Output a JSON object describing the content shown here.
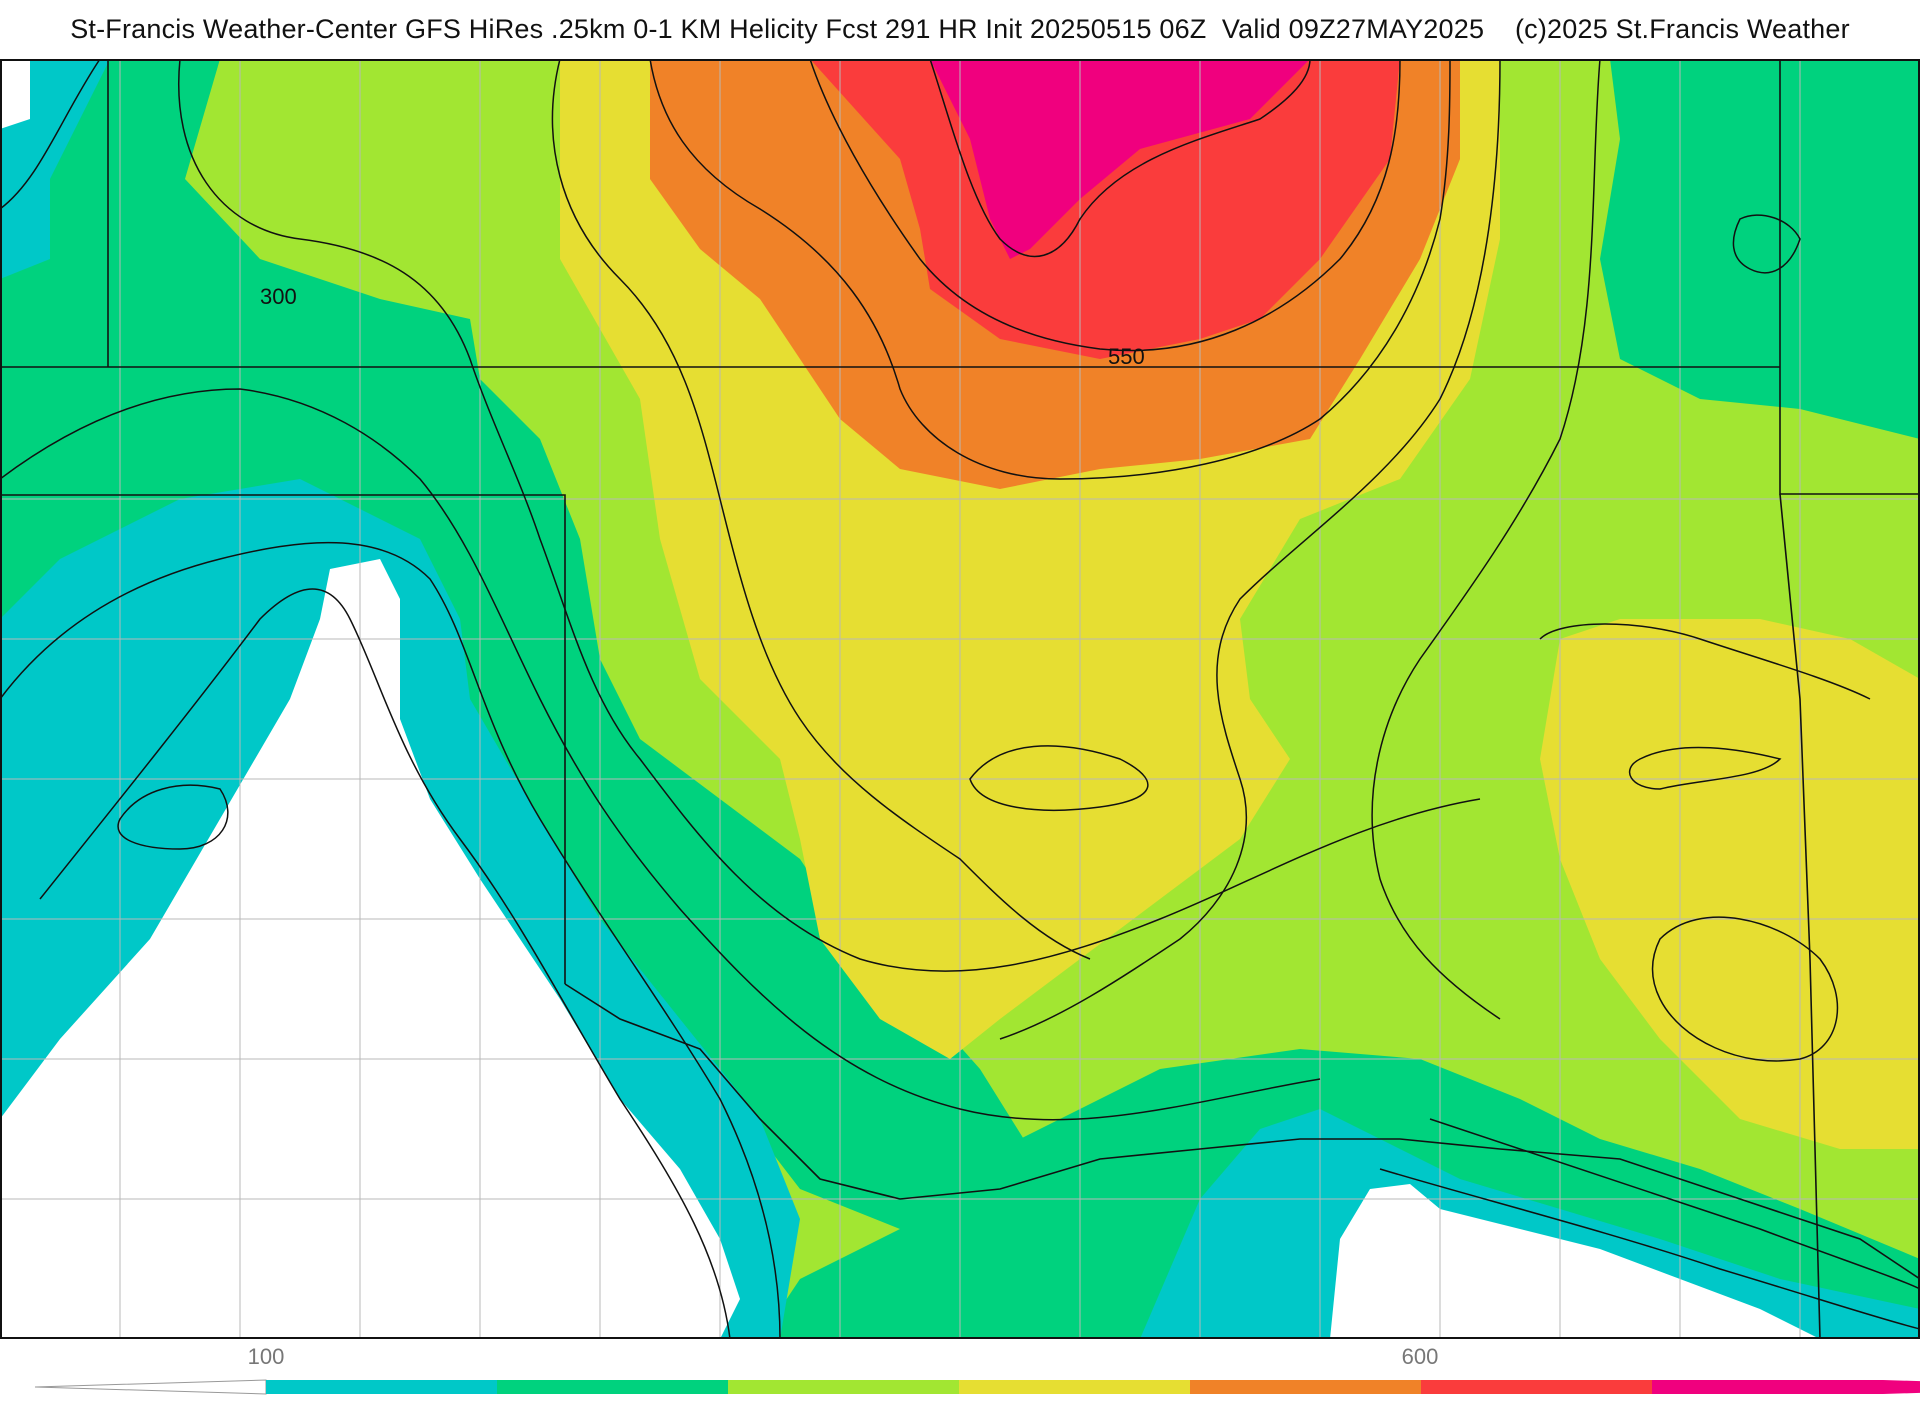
{
  "header": {
    "title": "St-Francis Weather-Center GFS HiRes .25km 0-1 KM Helicity Fcst 291 HR Init 20250515 06Z  Valid 09Z27MAY2025    (c)2025 St.Francis Weather"
  },
  "map": {
    "contour_labels": [
      "300",
      "550"
    ]
  },
  "colorbar": {
    "tick_labels": [
      "100",
      "600"
    ],
    "colors": [
      "#00c8c8",
      "#00d27e",
      "#a2e632",
      "#e6de32",
      "#f08228",
      "#fa3c3c",
      "#f0007e"
    ]
  }
}
